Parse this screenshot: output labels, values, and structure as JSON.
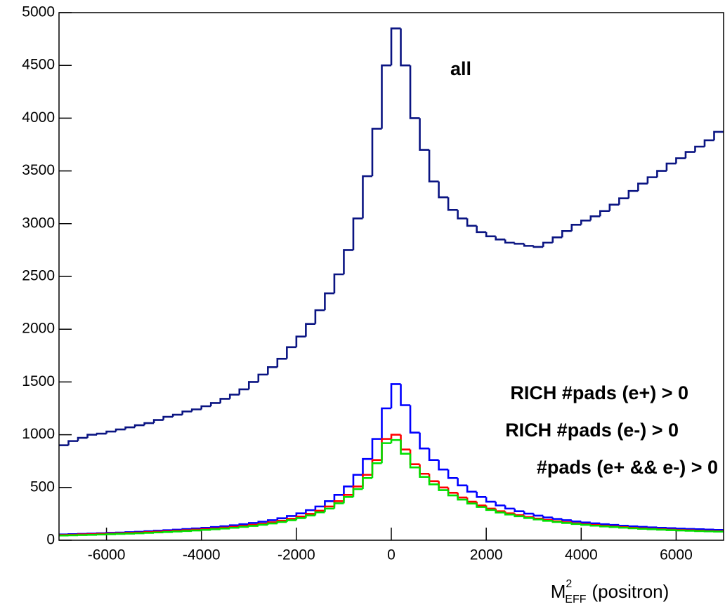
{
  "chart_data": {
    "type": "histogram",
    "xlabel": {
      "base": "M",
      "sup": "2",
      "sub": "EFF",
      "rest": "(positron)"
    },
    "bins": [
      -7000,
      -6800,
      -6600,
      -6400,
      -6200,
      -6000,
      -5800,
      -5600,
      -5400,
      -5200,
      -5000,
      -4800,
      -4600,
      -4400,
      -4200,
      -4000,
      -3800,
      -3600,
      -3400,
      -3200,
      -3000,
      -2800,
      -2600,
      -2400,
      -2200,
      -2000,
      -1800,
      -1600,
      -1400,
      -1200,
      -1000,
      -800,
      -600,
      -400,
      -200,
      0,
      200,
      400,
      600,
      800,
      1000,
      1200,
      1400,
      1600,
      1800,
      2000,
      2200,
      2400,
      2600,
      2800,
      3000,
      3200,
      3400,
      3600,
      3800,
      4000,
      4200,
      4400,
      4600,
      4800,
      5000,
      5200,
      5400,
      5600,
      5800,
      6000,
      6200,
      6400,
      6600,
      6800,
      7000
    ],
    "series": [
      {
        "name": "all",
        "color": "#0a1482",
        "values": [
          900,
          940,
          970,
          1000,
          1010,
          1030,
          1050,
          1070,
          1090,
          1110,
          1140,
          1170,
          1190,
          1220,
          1240,
          1270,
          1300,
          1340,
          1380,
          1430,
          1500,
          1570,
          1640,
          1720,
          1830,
          1930,
          2050,
          2180,
          2340,
          2520,
          2750,
          3050,
          3450,
          3900,
          4500,
          4850,
          4500,
          4000,
          3700,
          3400,
          3250,
          3130,
          3050,
          2980,
          2920,
          2880,
          2850,
          2820,
          2810,
          2790,
          2780,
          2820,
          2870,
          2930,
          2990,
          3030,
          3070,
          3120,
          3180,
          3240,
          3310,
          3380,
          3440,
          3500,
          3570,
          3620,
          3680,
          3730,
          3790,
          3870
        ]
      },
      {
        "name": "RICH #pads (e+) > 0",
        "color": "#0000ff",
        "values": [
          55,
          58,
          60,
          63,
          66,
          70,
          73,
          77,
          80,
          85,
          90,
          95,
          100,
          106,
          112,
          118,
          125,
          133,
          142,
          152,
          163,
          176,
          190,
          208,
          230,
          255,
          285,
          320,
          370,
          430,
          510,
          620,
          770,
          960,
          1250,
          1480,
          1280,
          1020,
          870,
          760,
          670,
          590,
          520,
          460,
          410,
          365,
          330,
          300,
          275,
          252,
          233,
          216,
          202,
          190,
          178,
          168,
          160,
          152,
          145,
          138,
          132,
          127,
          122,
          118,
          114,
          110,
          107,
          104,
          101,
          98
        ]
      },
      {
        "name": "RICH #pads (e-) > 0",
        "color": "#ff0000",
        "values": [
          50,
          52,
          55,
          57,
          60,
          63,
          66,
          70,
          73,
          77,
          81,
          85,
          90,
          95,
          100,
          106,
          112,
          119,
          127,
          136,
          146,
          157,
          170,
          185,
          203,
          225,
          250,
          280,
          320,
          370,
          430,
          510,
          620,
          760,
          960,
          1000,
          860,
          720,
          630,
          560,
          500,
          450,
          405,
          365,
          330,
          300,
          275,
          255,
          237,
          220,
          205,
          192,
          180,
          170,
          160,
          152,
          144,
          137,
          130,
          124,
          118,
          113,
          108,
          104,
          100,
          97,
          94,
          91,
          88,
          86
        ]
      },
      {
        "name": "#pads (e+ && e-) > 0",
        "color": "#00e000",
        "values": [
          45,
          47,
          49,
          51,
          54,
          57,
          60,
          63,
          66,
          70,
          74,
          78,
          83,
          88,
          93,
          98,
          104,
          111,
          118,
          127,
          136,
          147,
          159,
          173,
          190,
          210,
          235,
          265,
          300,
          350,
          410,
          485,
          590,
          730,
          920,
          950,
          820,
          690,
          600,
          530,
          475,
          425,
          385,
          348,
          315,
          287,
          263,
          244,
          227,
          211,
          197,
          184,
          173,
          163,
          154,
          146,
          138,
          131,
          125,
          119,
          113,
          108,
          104,
          100,
          96,
          93,
          90,
          87,
          84,
          82
        ]
      }
    ],
    "xlim": [
      -7000,
      7000
    ],
    "xticks": [
      -6000,
      -4000,
      -2000,
      0,
      2000,
      4000,
      6000
    ],
    "ylim": [
      0,
      5000
    ],
    "yticks": [
      0,
      500,
      1000,
      1500,
      2000,
      2500,
      3000,
      3500,
      4000,
      4500,
      5000
    ]
  }
}
